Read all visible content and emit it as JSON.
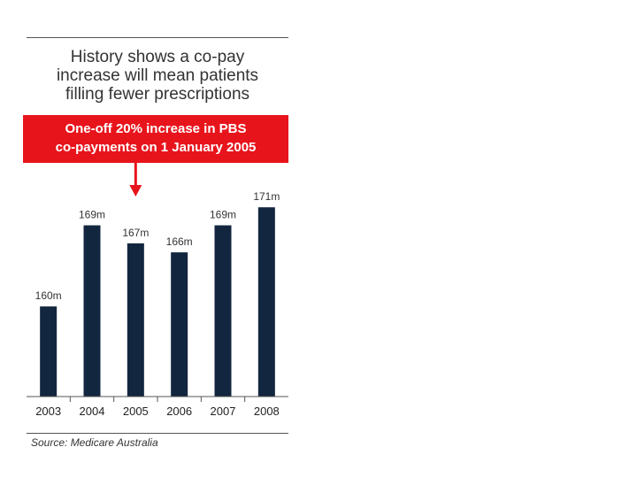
{
  "header": {
    "title_lines": [
      "History shows a co-pay",
      "increase will mean patients",
      "filling fewer prescriptions"
    ]
  },
  "callout": {
    "lines": [
      "One-off 20% increase in PBS",
      "co-payments on 1 January 2005"
    ],
    "color": "#e8141c",
    "points_to": "2005"
  },
  "source": "Source: Medicare Australia",
  "colors": {
    "bar": "#13263f",
    "arrow": "#e8141c",
    "axis": "#555555"
  },
  "chart_data": {
    "type": "bar",
    "title": "History shows a co-pay increase will mean patients filling fewer prescriptions",
    "xlabel": "",
    "ylabel": "",
    "unit": "m",
    "categories": [
      "2003",
      "2004",
      "2005",
      "2006",
      "2007",
      "2008"
    ],
    "values": [
      160,
      169,
      167,
      166,
      169,
      171
    ],
    "data_labels": [
      "160m",
      "169m",
      "167m",
      "166m",
      "169m",
      "171m"
    ],
    "ylim": [
      150,
      172
    ],
    "grid": false,
    "legend": "none"
  }
}
